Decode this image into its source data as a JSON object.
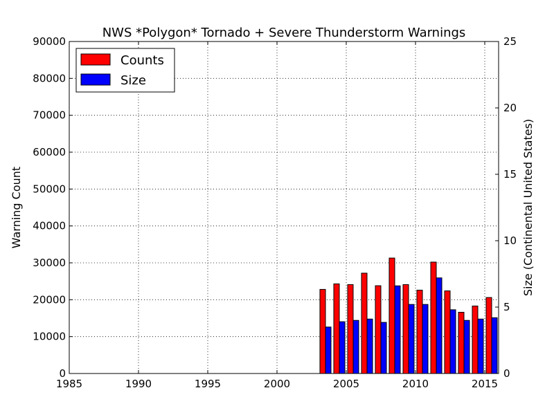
{
  "chart_data": {
    "type": "bar",
    "title": "NWS *Polygon* Tornado + Severe Thunderstorm Warnings",
    "xlim": [
      1985,
      2016
    ],
    "x_ticks": [
      1985,
      1990,
      1995,
      2000,
      2005,
      2010,
      2015
    ],
    "y_left": {
      "label": "Warning Count",
      "color": "#ff0000",
      "lim": [
        0,
        90000
      ],
      "ticks": [
        0,
        10000,
        20000,
        30000,
        40000,
        50000,
        60000,
        70000,
        80000,
        90000
      ]
    },
    "y_right": {
      "label": "Size (Continental United States)",
      "color": "#0000ff",
      "lim": [
        0,
        25
      ],
      "ticks": [
        0,
        5,
        10,
        15,
        20,
        25
      ]
    },
    "grid": true,
    "legend_position": "top-left",
    "series": [
      {
        "name": "Counts",
        "color": "#ff0000",
        "axis": "left",
        "x": [
          1986,
          1987,
          1988,
          1989,
          1990,
          1991,
          1992,
          1993,
          1994,
          1995,
          1996,
          1997,
          1998,
          1999,
          2000,
          2001,
          2002,
          2003,
          2004,
          2005,
          2006,
          2007,
          2008,
          2009,
          2010,
          2011,
          2012,
          2013,
          2014,
          2015
        ],
        "values": [
          0,
          0,
          0,
          0,
          0,
          0,
          0,
          0,
          0,
          0,
          0,
          0,
          0,
          0,
          0,
          0,
          0,
          22800,
          24300,
          24100,
          27200,
          23800,
          31300,
          24100,
          22600,
          30200,
          22400,
          16600,
          18300,
          20600
        ]
      },
      {
        "name": "Size",
        "color": "#0000ff",
        "axis": "right",
        "x": [
          1986,
          1987,
          1988,
          1989,
          1990,
          1991,
          1992,
          1993,
          1994,
          1995,
          1996,
          1997,
          1998,
          1999,
          2000,
          2001,
          2002,
          2003,
          2004,
          2005,
          2006,
          2007,
          2008,
          2009,
          2010,
          2011,
          2012,
          2013,
          2014,
          2015
        ],
        "values": [
          0,
          0,
          0,
          0,
          0,
          0,
          0,
          0,
          0,
          0,
          0,
          0,
          0,
          0,
          0,
          0,
          0,
          3.5,
          3.9,
          4.0,
          4.1,
          3.85,
          6.6,
          5.2,
          5.2,
          7.2,
          4.8,
          4.0,
          4.1,
          4.2
        ]
      }
    ]
  }
}
